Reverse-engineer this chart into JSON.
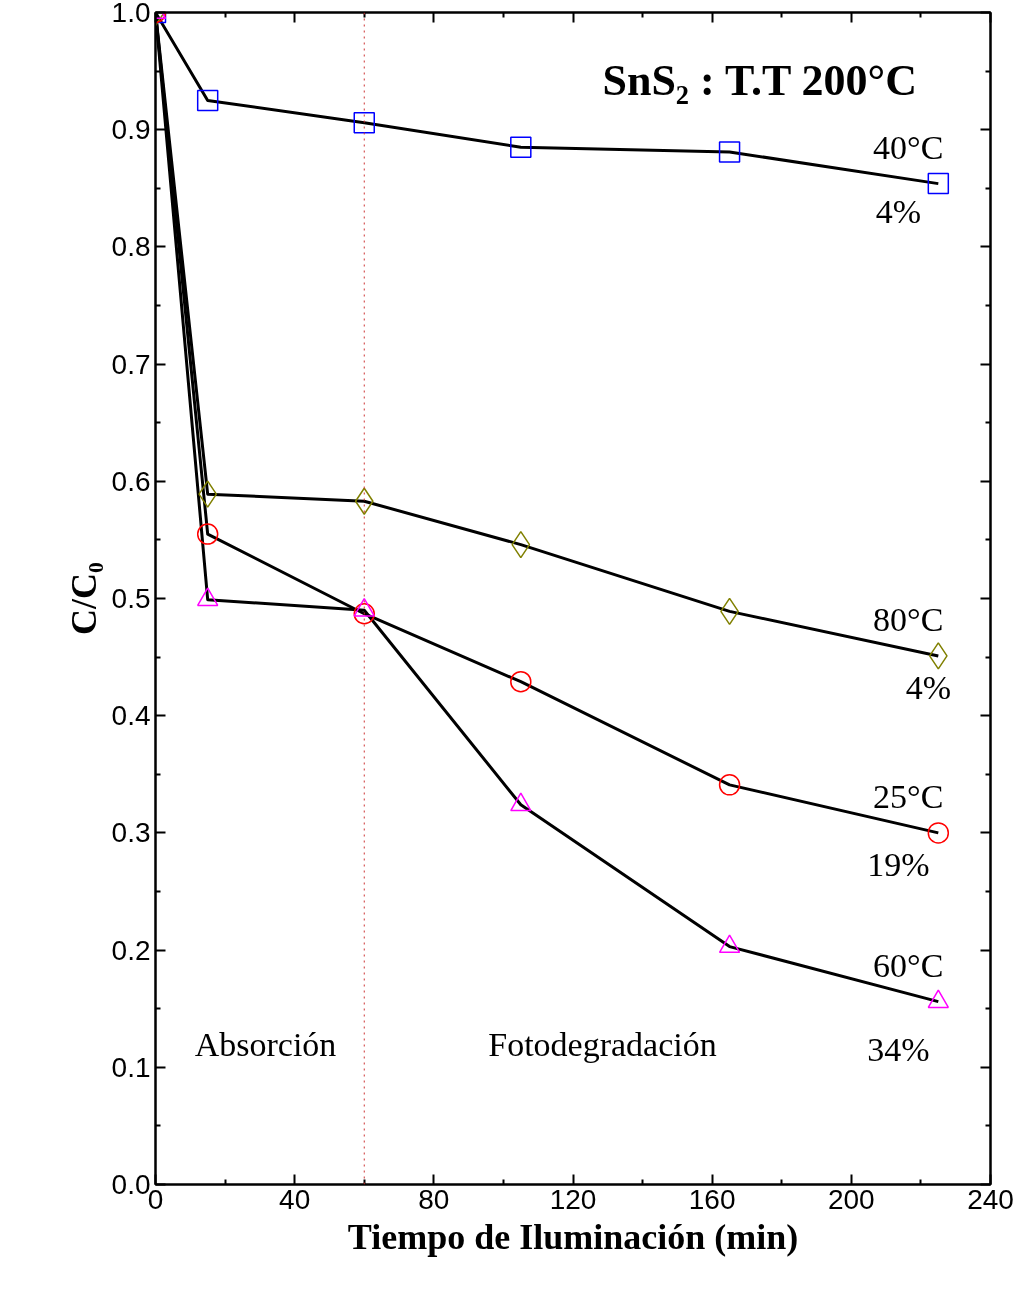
{
  "chart_data": {
    "type": "line",
    "title": "SnS₂ : T.T 200°C",
    "xlabel": "Tiempo de Iluminación (min)",
    "ylabel": "C/C₀",
    "x": [
      0,
      15,
      60,
      105,
      165,
      225
    ],
    "series": [
      {
        "name": "40°C",
        "color": "#0000ff",
        "marker": "square",
        "values": [
          1.0,
          0.925,
          0.906,
          0.885,
          0.881,
          0.854
        ]
      },
      {
        "name": "80°C",
        "color": "#808000",
        "marker": "diamond",
        "values": [
          1.0,
          0.589,
          0.583,
          0.546,
          0.489,
          0.451
        ]
      },
      {
        "name": "25°C",
        "color": "#ff0000",
        "marker": "circle",
        "values": [
          1.0,
          0.555,
          0.487,
          0.429,
          0.341,
          0.3
        ]
      },
      {
        "name": "60°C",
        "color": "#ff00ff",
        "marker": "triangle",
        "values": [
          1.0,
          0.499,
          0.49,
          0.324,
          0.203,
          0.156
        ]
      }
    ],
    "xlim": [
      0,
      240
    ],
    "xticks": [
      0,
      40,
      80,
      120,
      160,
      200,
      240
    ],
    "ylim": [
      0,
      1.0
    ],
    "yticks": [
      {
        "value": 0,
        "label": "0.0"
      },
      {
        "value": 0.1,
        "label": "0.1"
      },
      {
        "value": 0.2,
        "label": "0.2"
      },
      {
        "value": 0.3,
        "label": "0.3"
      },
      {
        "value": 0.4,
        "label": "0.4"
      },
      {
        "value": 0.5,
        "label": "0.5"
      },
      {
        "value": 0.6,
        "label": "0.6"
      },
      {
        "value": 0.7,
        "label": "0.7"
      },
      {
        "value": 0.8,
        "label": "0.8"
      },
      {
        "value": 0.9,
        "label": "0.9"
      },
      {
        "value": 1.0,
        "label": "1.0"
      }
    ],
    "ref_lines": [
      {
        "axis": "x",
        "value": 60,
        "label": null,
        "color": "#cc3333",
        "line_style": "dotted"
      }
    ],
    "annotations": [
      "4%",
      "4%",
      "19%",
      "34%",
      "Absorción",
      "Fotodegradación"
    ],
    "grid": false,
    "legend": "right",
    "line_style": "solid"
  }
}
